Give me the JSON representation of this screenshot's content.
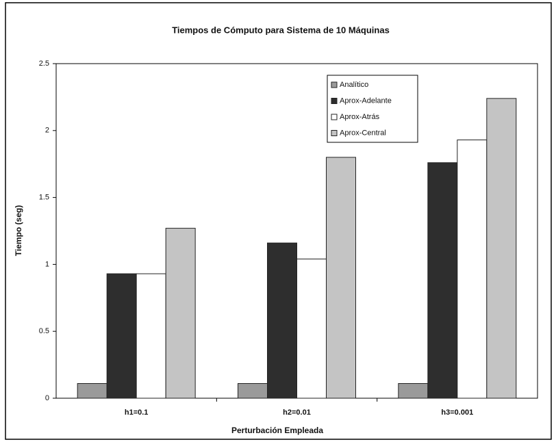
{
  "chart_data": {
    "type": "bar",
    "title": "Tiempos de Cómputo para Sistema de 10 Máquinas",
    "xlabel": "Perturbación Empleada",
    "ylabel": "Tiempo (seg)",
    "categories": [
      "h1=0.1",
      "h2=0.01",
      "h3=0.001"
    ],
    "series": [
      {
        "name": "Analítico",
        "color": "#9a9a9a",
        "values": [
          0.11,
          0.11,
          0.11
        ]
      },
      {
        "name": "Aprox-Adelante",
        "color": "#2e2e2e",
        "values": [
          0.93,
          1.16,
          1.76
        ]
      },
      {
        "name": "Aprox-Atrás",
        "color": "#ffffff",
        "values": [
          0.93,
          1.04,
          1.93
        ]
      },
      {
        "name": "Aprox-Central",
        "color": "#c4c4c4",
        "values": [
          1.27,
          1.8,
          2.24
        ]
      }
    ],
    "ylim": [
      0,
      2.5
    ],
    "yticks": [
      0,
      0.5,
      1,
      1.5,
      2,
      2.5
    ],
    "legend": "upper right"
  }
}
